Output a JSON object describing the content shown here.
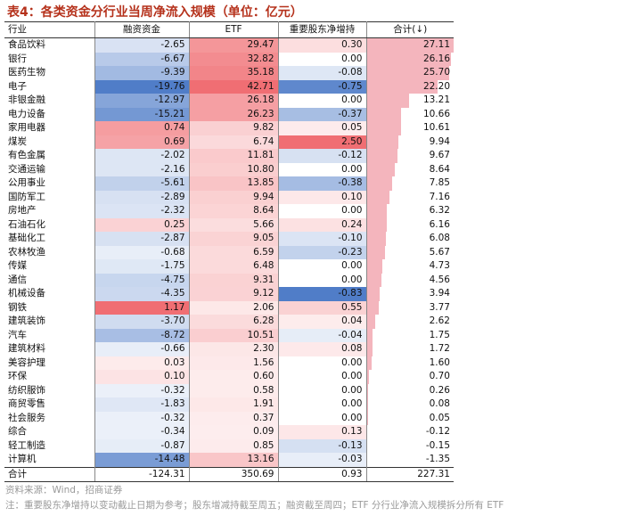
{
  "title": "表4：各类资金分行业当周净流入规模（单位：亿元）",
  "headers": {
    "industry": "行业",
    "finance": "融资资金",
    "etf": "ETF",
    "holder": "重要股东净增持",
    "total": "合计(↓)"
  },
  "rows": [
    {
      "name": "食品饮料",
      "fin": -2.65,
      "etf": 29.47,
      "hold": 0.3,
      "total": 27.11
    },
    {
      "name": "银行",
      "fin": -6.67,
      "etf": 32.82,
      "hold": 0.0,
      "total": 26.16
    },
    {
      "name": "医药生物",
      "fin": -9.39,
      "etf": 35.18,
      "hold": -0.08,
      "total": 25.7
    },
    {
      "name": "电子",
      "fin": -19.76,
      "etf": 42.71,
      "hold": -0.75,
      "total": 22.2
    },
    {
      "name": "非银金融",
      "fin": -12.97,
      "etf": 26.18,
      "hold": 0.0,
      "total": 13.21
    },
    {
      "name": "电力设备",
      "fin": -15.21,
      "etf": 26.23,
      "hold": -0.37,
      "total": 10.66
    },
    {
      "name": "家用电器",
      "fin": 0.74,
      "etf": 9.82,
      "hold": 0.05,
      "total": 10.61
    },
    {
      "name": "煤炭",
      "fin": 0.69,
      "etf": 6.74,
      "hold": 2.5,
      "total": 9.94
    },
    {
      "name": "有色金属",
      "fin": -2.02,
      "etf": 11.81,
      "hold": -0.12,
      "total": 9.67
    },
    {
      "name": "交通运输",
      "fin": -2.16,
      "etf": 10.8,
      "hold": 0.0,
      "total": 8.64
    },
    {
      "name": "公用事业",
      "fin": -5.61,
      "etf": 13.85,
      "hold": -0.38,
      "total": 7.85
    },
    {
      "name": "国防军工",
      "fin": -2.89,
      "etf": 9.94,
      "hold": 0.1,
      "total": 7.16
    },
    {
      "name": "房地产",
      "fin": -2.32,
      "etf": 8.64,
      "hold": 0.0,
      "total": 6.32
    },
    {
      "name": "石油石化",
      "fin": 0.25,
      "etf": 5.66,
      "hold": 0.24,
      "total": 6.16
    },
    {
      "name": "基础化工",
      "fin": -2.87,
      "etf": 9.05,
      "hold": -0.1,
      "total": 6.08
    },
    {
      "name": "农林牧渔",
      "fin": -0.68,
      "etf": 6.59,
      "hold": -0.23,
      "total": 5.67
    },
    {
      "name": "传媒",
      "fin": -1.75,
      "etf": 6.48,
      "hold": 0.0,
      "total": 4.73
    },
    {
      "name": "通信",
      "fin": -4.75,
      "etf": 9.31,
      "hold": 0.0,
      "total": 4.56
    },
    {
      "name": "机械设备",
      "fin": -4.35,
      "etf": 9.12,
      "hold": -0.83,
      "total": 3.94
    },
    {
      "name": "钢铁",
      "fin": 1.17,
      "etf": 2.06,
      "hold": 0.55,
      "total": 3.77
    },
    {
      "name": "建筑装饰",
      "fin": -3.7,
      "etf": 6.28,
      "hold": 0.04,
      "total": 2.62
    },
    {
      "name": "汽车",
      "fin": -8.72,
      "etf": 10.51,
      "hold": -0.04,
      "total": 1.75
    },
    {
      "name": "建筑材料",
      "fin": -0.66,
      "etf": 2.3,
      "hold": 0.08,
      "total": 1.72
    },
    {
      "name": "美容护理",
      "fin": 0.03,
      "etf": 1.56,
      "hold": 0.0,
      "total": 1.6
    },
    {
      "name": "环保",
      "fin": 0.1,
      "etf": 0.6,
      "hold": 0.0,
      "total": 0.7
    },
    {
      "name": "纺织服饰",
      "fin": -0.32,
      "etf": 0.58,
      "hold": 0.0,
      "total": 0.26
    },
    {
      "name": "商贸零售",
      "fin": -1.83,
      "etf": 1.91,
      "hold": 0.0,
      "total": 0.08
    },
    {
      "name": "社会服务",
      "fin": -0.32,
      "etf": 0.37,
      "hold": 0.0,
      "total": 0.05
    },
    {
      "name": "综合",
      "fin": -0.34,
      "etf": 0.09,
      "hold": 0.13,
      "total": -0.12
    },
    {
      "name": "轻工制造",
      "fin": -0.87,
      "etf": 0.85,
      "hold": -0.13,
      "total": -0.15
    },
    {
      "name": "计算机",
      "fin": -14.48,
      "etf": 13.16,
      "hold": -0.03,
      "total": -1.35
    }
  ],
  "sum": {
    "name": "合计",
    "fin": "-124.31",
    "etf": "350.69",
    "hold": "0.93",
    "total": "227.31"
  },
  "footer": {
    "source": "资料来源：Wind，招商证券",
    "note": "注：重要股东净增持以变动截止日期为参考；股东增减持截至周五；融资截至周四；ETF 分行业净流入规模拆分所有 ETF"
  },
  "colors": {
    "positive": "#f08080",
    "negative": "#5b86cc",
    "total_bar": "#f4b5bd",
    "title": "#b5311b"
  }
}
